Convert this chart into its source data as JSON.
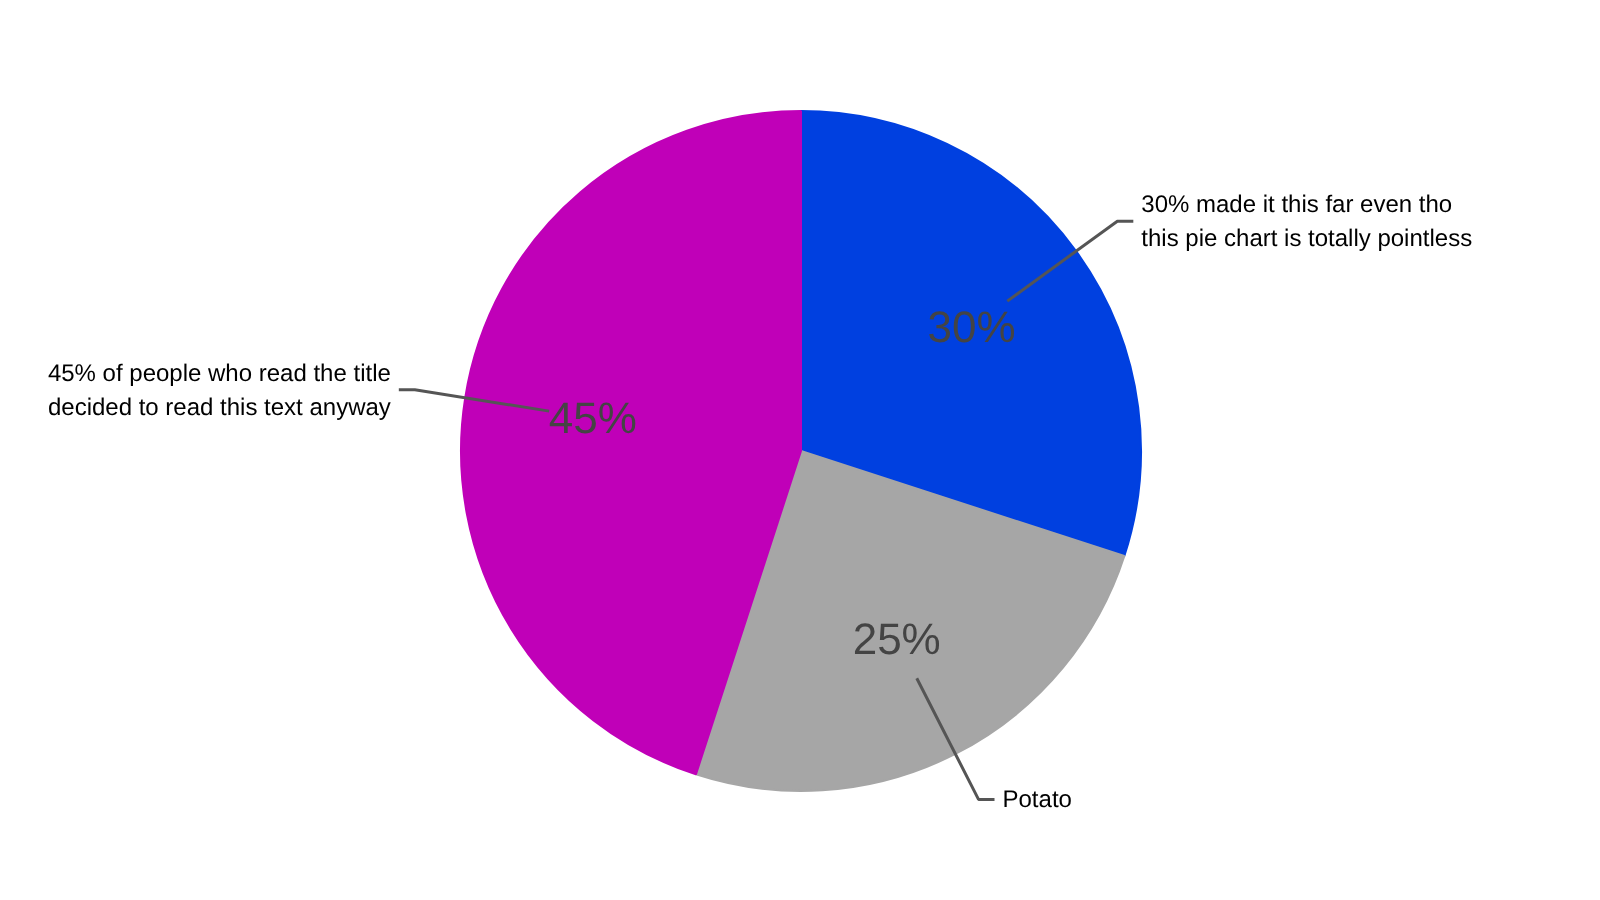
{
  "chart_data": {
    "type": "pie",
    "categories": [
      "30% made it this far even tho\nthis pie chart is totally pointless",
      "Potato",
      "45% of people who read the title\ndecided to read this text anyway"
    ],
    "values": [
      30,
      25,
      45
    ],
    "colors": [
      "#0040e0",
      "#a6a6a6",
      "#c000b8"
    ],
    "value_labels": [
      "30%",
      "25%",
      "45%"
    ]
  }
}
